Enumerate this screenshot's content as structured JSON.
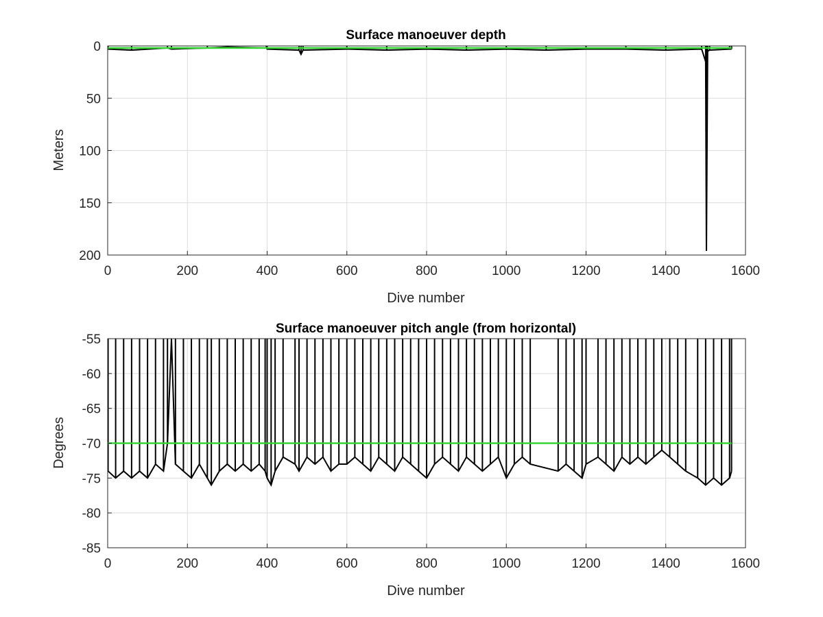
{
  "chart_data": [
    {
      "type": "line",
      "title": "Surface manoeuver depth",
      "xlabel": "Dive number",
      "ylabel": "Meters",
      "xlim": [
        0,
        1600
      ],
      "ylim": [
        0,
        200
      ],
      "y_reversed": true,
      "grid": true,
      "x_ticks": [
        "0",
        "200",
        "400",
        "600",
        "800",
        "1000",
        "1200",
        "1400",
        "1600"
      ],
      "y_ticks": [
        "0",
        "50",
        "100",
        "150",
        "200"
      ],
      "colors": {
        "series": "#000000",
        "reference": "#33d633"
      },
      "series": [
        {
          "x": [
            1,
            60,
            150,
            160,
            250,
            300,
            398,
            400,
            480,
            485,
            490,
            600,
            700,
            800,
            900,
            1000,
            1100,
            1200,
            1300,
            1400,
            1490,
            1500,
            1502,
            1505,
            1510,
            1560,
            1565
          ],
          "values": [
            3,
            4,
            2,
            3,
            2,
            1,
            2,
            3,
            4,
            8,
            4,
            3,
            4,
            3,
            4,
            3,
            4,
            3,
            3,
            4,
            3,
            15,
            196,
            5,
            4,
            3,
            3
          ]
        },
        {
          "x": [
            0,
            1565
          ],
          "values": [
            2,
            2
          ]
        }
      ]
    },
    {
      "type": "line",
      "title": "Surface manoeuver pitch angle (from horizontal)",
      "xlabel": "Dive number",
      "ylabel": "Degrees",
      "xlim": [
        0,
        1600
      ],
      "ylim": [
        -85,
        -55
      ],
      "grid": true,
      "x_ticks": [
        "0",
        "200",
        "400",
        "600",
        "800",
        "1000",
        "1200",
        "1400",
        "1600"
      ],
      "y_ticks": [
        "-55",
        "-60",
        "-65",
        "-70",
        "-75",
        "-80",
        "-85"
      ],
      "colors": {
        "series": "#000000",
        "reference": "#33d633"
      },
      "series": [
        {
          "x": [
            1,
            20,
            40,
            60,
            80,
            100,
            120,
            140,
            150,
            160,
            170,
            190,
            210,
            230,
            250,
            260,
            280,
            300,
            320,
            340,
            360,
            380,
            395,
            400,
            410,
            420,
            440,
            470,
            480,
            500,
            520,
            540,
            560,
            580,
            600,
            620,
            640,
            660,
            680,
            700,
            720,
            740,
            760,
            780,
            800,
            820,
            840,
            860,
            880,
            900,
            920,
            940,
            960,
            980,
            1000,
            1020,
            1040,
            1060,
            1130,
            1150,
            1170,
            1190,
            1200,
            1230,
            1250,
            1270,
            1290,
            1310,
            1330,
            1350,
            1370,
            1390,
            1410,
            1430,
            1450,
            1480,
            1500,
            1520,
            1540,
            1560,
            1565
          ],
          "values": [
            -74,
            -75,
            -74,
            -75,
            -74,
            -75,
            -73,
            -74,
            -70,
            -55,
            -73,
            -74,
            -75,
            -73,
            -75,
            -76,
            -74,
            -73,
            -74,
            -73,
            -74,
            -73,
            -74,
            -75,
            -76,
            -74,
            -72,
            -73,
            -74,
            -72,
            -73,
            -72,
            -74,
            -73,
            -73,
            -72,
            -73,
            -74,
            -72,
            -73,
            -74,
            -72,
            -73,
            -74,
            -75,
            -73,
            -72,
            -73,
            -74,
            -72,
            -73,
            -74,
            -73,
            -72,
            -75,
            -73,
            -72,
            -73,
            -74,
            -73,
            -74,
            -75,
            -73,
            -72,
            -73,
            -74,
            -72,
            -73,
            -72,
            -73,
            -72,
            -71,
            -72,
            -73,
            -74,
            -75,
            -76,
            -75,
            -76,
            -75,
            -74
          ]
        },
        {
          "x": [
            0,
            1565
          ],
          "values": [
            -70,
            -70
          ]
        }
      ]
    }
  ]
}
